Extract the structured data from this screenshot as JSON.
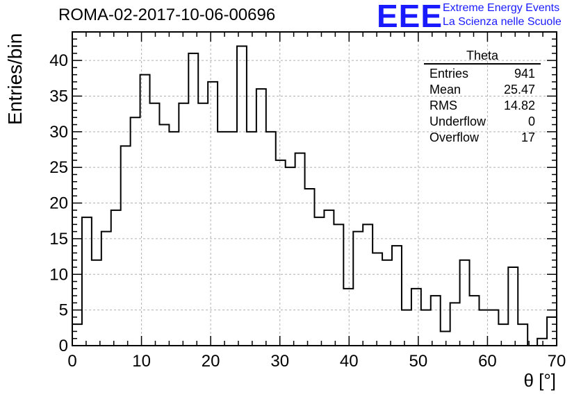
{
  "chart_data": {
    "type": "bar",
    "title": "ROMA-02-2017-10-06-00696",
    "xlabel": "θ [°]",
    "ylabel": "Entries/bin",
    "xlim": [
      0,
      70
    ],
    "ylim": [
      0,
      44
    ],
    "grid": true,
    "x_ticks": [
      0,
      10,
      20,
      30,
      40,
      50,
      60,
      70
    ],
    "y_ticks": [
      0,
      5,
      10,
      15,
      20,
      25,
      30,
      35,
      40
    ],
    "bin_width": 1.4,
    "bin_counts": [
      3,
      18,
      12,
      16,
      19,
      28,
      32,
      38,
      34,
      31,
      30,
      34,
      41,
      34,
      37,
      30,
      30,
      42,
      30,
      36,
      30,
      26,
      25,
      27,
      22,
      18,
      19,
      17,
      8,
      16,
      17,
      13,
      12,
      14,
      5,
      8,
      5,
      7,
      2,
      6,
      12,
      7,
      5,
      5,
      3,
      11,
      3,
      0,
      1,
      4
    ]
  },
  "stats_box": {
    "title": "Theta",
    "rows": [
      {
        "label": "Entries",
        "value": "941"
      },
      {
        "label": "Mean",
        "value": "25.47"
      },
      {
        "label": "RMS",
        "value": "14.82"
      },
      {
        "label": "Underflow",
        "value": "0"
      },
      {
        "label": "Overflow",
        "value": "17"
      }
    ]
  },
  "logo": {
    "mark": "EEE",
    "line1": "Extreme Energy Events",
    "line2": "La Scienza nelle Scuole",
    "color": "#1a1aff"
  }
}
